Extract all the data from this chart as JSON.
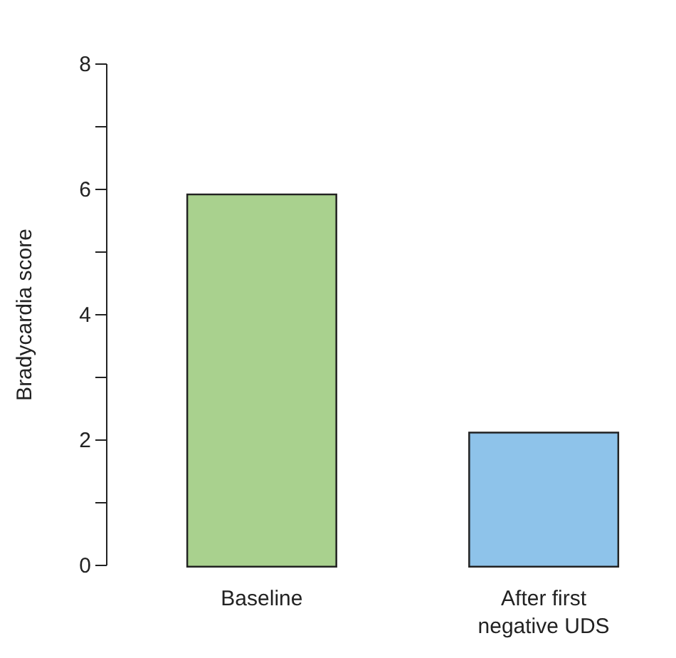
{
  "chart_data": {
    "type": "bar",
    "ylabel": "Bradycardia score",
    "categories": [
      "Baseline",
      "After first negative UDS"
    ],
    "values": [
      5.9,
      2.1
    ],
    "colors": [
      "#a9d18e",
      "#8ec3ea"
    ],
    "ylim": [
      0,
      8
    ],
    "yticks": [
      0,
      {
        "value": 1,
        "label": null
      },
      2,
      {
        "value": 3,
        "label": null
      },
      4,
      {
        "value": 5,
        "label": null
      },
      6,
      {
        "value": 7,
        "label": null
      },
      8
    ],
    "grid": false
  }
}
